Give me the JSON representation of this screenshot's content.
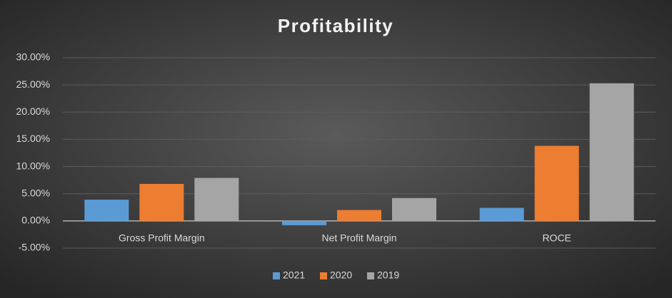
{
  "chart_data": {
    "type": "bar",
    "title": "Profitability",
    "categories": [
      "Gross Profit Margin",
      "Net Profit Margin",
      "ROCE"
    ],
    "series": [
      {
        "name": "2021",
        "color": "#5b9bd5",
        "values": [
          3.9,
          -0.8,
          2.4
        ]
      },
      {
        "name": "2020",
        "color": "#ed7d31",
        "values": [
          6.8,
          2.0,
          13.8
        ]
      },
      {
        "name": "2019",
        "color": "#a5a5a5",
        "values": [
          7.9,
          4.2,
          25.3
        ]
      }
    ],
    "ylim": [
      -5,
      30
    ],
    "yticks": [
      {
        "value": -5,
        "label": "-5.00%"
      },
      {
        "value": 0,
        "label": "0.00%"
      },
      {
        "value": 5,
        "label": "5.00%"
      },
      {
        "value": 10,
        "label": "10.00%"
      },
      {
        "value": 15,
        "label": "15.00%"
      },
      {
        "value": 20,
        "label": "20.00%"
      },
      {
        "value": 25,
        "label": "25.00%"
      },
      {
        "value": 30,
        "label": "30.00%"
      }
    ],
    "grid": true,
    "legend": "bottom"
  }
}
